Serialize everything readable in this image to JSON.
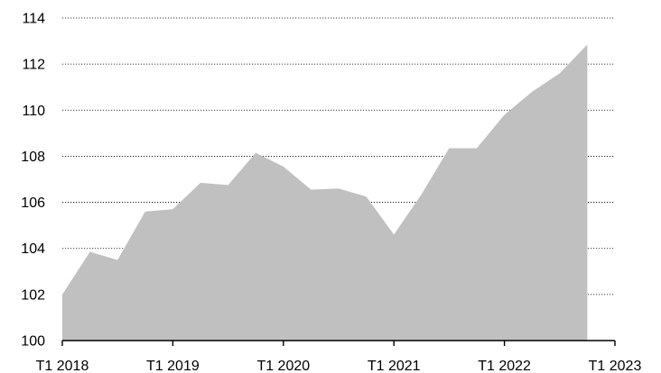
{
  "chart_data": {
    "type": "area",
    "title": "",
    "xlabel": "",
    "ylabel": "",
    "ylim": [
      100,
      114
    ],
    "yticks": [
      "100",
      "102",
      "104",
      "106",
      "108",
      "110",
      "112",
      "114"
    ],
    "xticks": [
      "T1 2018",
      "T1 2019",
      "T1 2020",
      "T1 2021",
      "T1 2022",
      "T1 2023"
    ],
    "grid": "horizontal-dotted",
    "fill_color": "#c0c0c0",
    "x": [
      "T1 2018",
      "T2 2018",
      "T3 2018",
      "T4 2018",
      "T1 2019",
      "T2 2019",
      "T3 2019",
      "T4 2019",
      "T1 2020",
      "T2 2020",
      "T3 2020",
      "T4 2020",
      "T1 2021",
      "T2 2021",
      "T3 2021",
      "T4 2021",
      "T1 2022",
      "T2 2022",
      "T3 2022",
      "T4 2022"
    ],
    "values": [
      102.0,
      103.85,
      103.5,
      105.6,
      105.7,
      106.85,
      106.75,
      108.15,
      107.55,
      106.55,
      106.6,
      106.25,
      104.6,
      106.35,
      108.35,
      108.35,
      109.8,
      110.8,
      111.6,
      112.85
    ]
  }
}
